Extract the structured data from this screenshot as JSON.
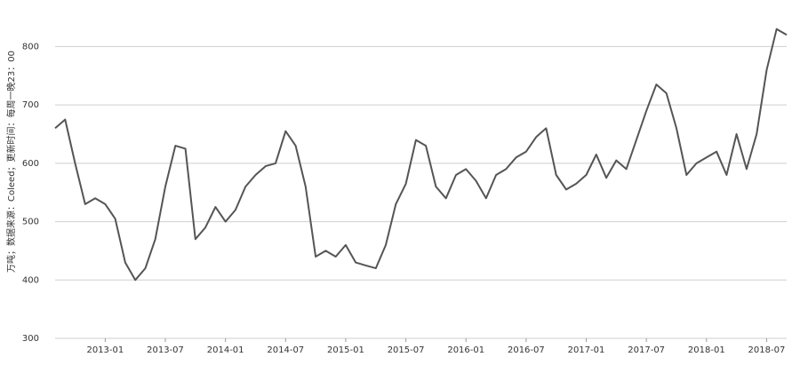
{
  "chart_data": {
    "type": "line",
    "y_label": "万吨；数据来源：Coleed；更新时间：每周一晚23：00",
    "x": [
      "2012-08",
      "2012-09",
      "2012-10",
      "2012-11",
      "2012-12",
      "2013-01",
      "2013-02",
      "2013-03",
      "2013-04",
      "2013-05",
      "2013-06",
      "2013-07",
      "2013-08",
      "2013-09",
      "2013-10",
      "2013-11",
      "2013-12",
      "2014-01",
      "2014-02",
      "2014-03",
      "2014-04",
      "2014-05",
      "2014-06",
      "2014-07",
      "2014-08",
      "2014-09",
      "2014-10",
      "2014-11",
      "2014-12",
      "2015-01",
      "2015-02",
      "2015-03",
      "2015-04",
      "2015-05",
      "2015-06",
      "2015-07",
      "2015-08",
      "2015-09",
      "2015-10",
      "2015-11",
      "2015-12",
      "2016-01",
      "2016-02",
      "2016-03",
      "2016-04",
      "2016-05",
      "2016-06",
      "2016-07",
      "2016-08",
      "2016-09",
      "2016-10",
      "2016-11",
      "2016-12",
      "2017-01",
      "2017-02",
      "2017-03",
      "2017-04",
      "2017-05",
      "2017-06",
      "2017-07",
      "2017-08",
      "2017-09",
      "2017-10",
      "2017-11",
      "2017-12",
      "2018-01",
      "2018-02",
      "2018-03",
      "2018-04",
      "2018-05",
      "2018-06",
      "2018-07",
      "2018-08",
      "2018-09"
    ],
    "series": [
      {
        "color": "#555555",
        "values": [
          660,
          675,
          600,
          530,
          540,
          530,
          505,
          430,
          400,
          420,
          470,
          560,
          630,
          625,
          470,
          490,
          525,
          500,
          520,
          560,
          580,
          595,
          600,
          655,
          630,
          560,
          440,
          450,
          440,
          460,
          430,
          425,
          420,
          460,
          530,
          565,
          640,
          630,
          560,
          540,
          580,
          590,
          570,
          540,
          580,
          590,
          610,
          620,
          645,
          660,
          580,
          555,
          565,
          580,
          615,
          575,
          605,
          590,
          640,
          690,
          735,
          720,
          660,
          580,
          600,
          610,
          620,
          580,
          650,
          590,
          650,
          760,
          830,
          820
        ]
      }
    ],
    "xlim": [
      "2012-08",
      "2018-09"
    ],
    "xticks": [
      "2013-01",
      "2013-07",
      "2014-01",
      "2014-07",
      "2015-01",
      "2015-07",
      "2016-01",
      "2016-07",
      "2017-01",
      "2017-07",
      "2018-01",
      "2018-07"
    ],
    "ylim": [
      300,
      860
    ],
    "yticks": [
      300,
      400,
      500,
      600,
      700,
      800
    ],
    "grid": true
  }
}
